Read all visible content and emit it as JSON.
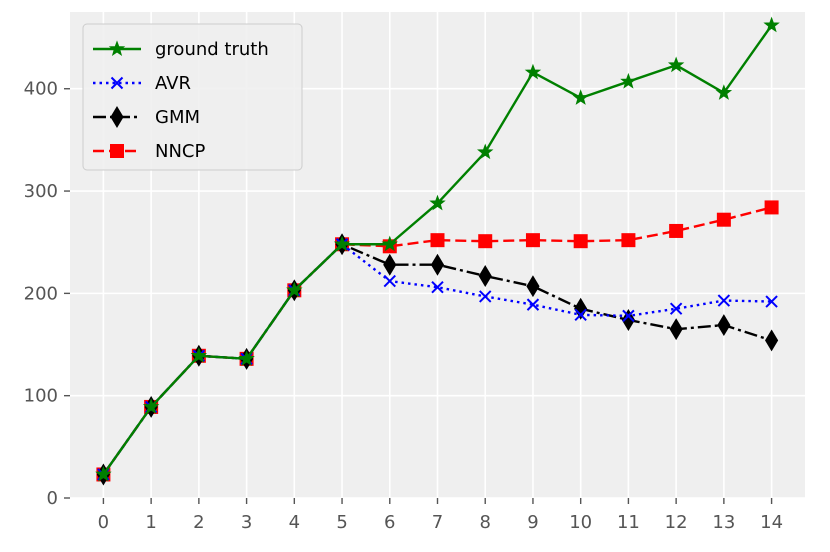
{
  "chart_data": {
    "type": "line",
    "title": "",
    "xlabel": "",
    "ylabel": "",
    "x": [
      0,
      1,
      2,
      3,
      4,
      5,
      6,
      7,
      8,
      9,
      10,
      11,
      12,
      13,
      14
    ],
    "xlim": [
      -0.7,
      14.7
    ],
    "ylim": [
      0,
      475
    ],
    "yticks": [
      0,
      100,
      200,
      300,
      400
    ],
    "grid": true,
    "background": "#efefef",
    "legend_position": "upper-left",
    "series": [
      {
        "name": "ground truth",
        "color": "#008000",
        "linestyle": "solid",
        "marker": "star",
        "values": [
          23,
          89,
          139,
          136,
          203,
          248,
          248,
          288,
          338,
          416,
          391,
          407,
          423,
          396,
          462
        ]
      },
      {
        "name": "AVR",
        "color": "#0000ff",
        "linestyle": "dotted",
        "marker": "x",
        "values": [
          23,
          89,
          139,
          136,
          203,
          248,
          212,
          206,
          197,
          189,
          179,
          178,
          185,
          193,
          192
        ]
      },
      {
        "name": "GMM",
        "color": "#000000",
        "linestyle": "dashdot",
        "marker": "thin-diamond",
        "values": [
          23,
          89,
          139,
          136,
          203,
          248,
          228,
          228,
          217,
          207,
          185,
          174,
          165,
          169,
          154
        ]
      },
      {
        "name": "NNCP",
        "color": "#ff0000",
        "linestyle": "dashed",
        "marker": "square",
        "values": [
          23,
          89,
          139,
          136,
          203,
          248,
          246,
          252,
          251,
          252,
          251,
          252,
          261,
          272,
          284
        ]
      }
    ]
  }
}
